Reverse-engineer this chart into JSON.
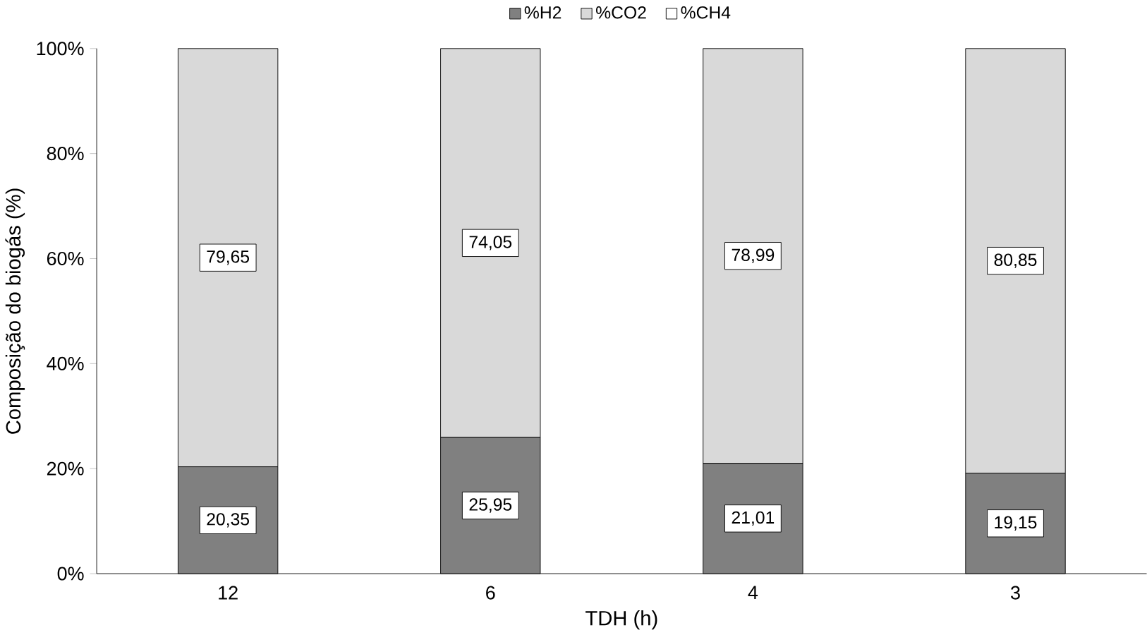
{
  "chart_data": {
    "type": "bar",
    "stacked": true,
    "xlabel": "TDH (h)",
    "ylabel": "Composição do biogás (%)",
    "categories": [
      "12",
      "6",
      "4",
      "3"
    ],
    "series": [
      {
        "name": "%H2",
        "color": "#808080",
        "values": [
          20.35,
          25.95,
          21.01,
          19.15
        ],
        "value_labels": [
          "20,35",
          "25,95",
          "21,01",
          "19,15"
        ]
      },
      {
        "name": "%CO2",
        "color": "#d9d9d9",
        "values": [
          79.65,
          74.05,
          78.99,
          80.85
        ],
        "value_labels": [
          "79,65",
          "74,05",
          "78,99",
          "80,85"
        ]
      },
      {
        "name": "%CH4",
        "color": "#ffffff",
        "values": [
          null,
          null,
          null,
          null
        ]
      }
    ],
    "ylim": [
      0,
      100
    ],
    "yticks": [
      {
        "value": 0,
        "label": "0%"
      },
      {
        "value": 20,
        "label": "20%"
      },
      {
        "value": 40,
        "label": "40%"
      },
      {
        "value": 60,
        "label": "60%"
      },
      {
        "value": 80,
        "label": "80%"
      },
      {
        "value": 100,
        "label": "100%"
      }
    ],
    "grid": false,
    "legend": "top"
  }
}
